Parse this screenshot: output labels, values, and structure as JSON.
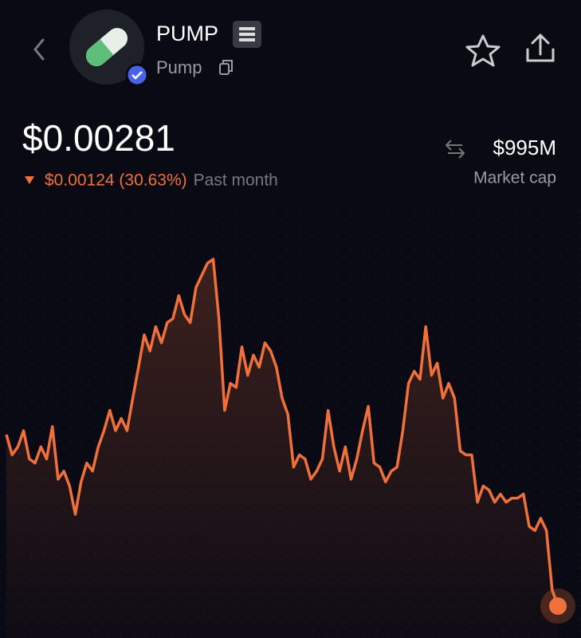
{
  "header": {
    "symbol": "PUMP",
    "name": "Pump"
  },
  "price": {
    "current": "$0.00281",
    "change": "$0.00124 (30.63%)",
    "period": "Past month"
  },
  "market_cap": {
    "value": "$995M",
    "label": "Market cap"
  },
  "chart": {
    "type": "line",
    "color": "#f0703c",
    "values": [
      0.00408,
      0.00393,
      0.00399,
      0.00411,
      0.0039,
      0.00387,
      0.00399,
      0.0039,
      0.00414,
      0.00375,
      0.00381,
      0.0037,
      0.00349,
      0.00373,
      0.00387,
      0.00381,
      0.00399,
      0.00411,
      0.00426,
      0.00411,
      0.0042,
      0.00411,
      0.00435,
      0.00458,
      0.00482,
      0.0047,
      0.00488,
      0.00476,
      0.00491,
      0.00494,
      0.00511,
      0.00497,
      0.00491,
      0.00517,
      0.00526,
      0.00535,
      0.00538,
      0.00494,
      0.00426,
      0.00446,
      0.00443,
      0.00473,
      0.00452,
      0.00467,
      0.00458,
      0.00476,
      0.0047,
      0.00458,
      0.00435,
      0.00423,
      0.00384,
      0.00393,
      0.0039,
      0.00375,
      0.00381,
      0.0039,
      0.00426,
      0.00399,
      0.00381,
      0.00399,
      0.00375,
      0.0039,
      0.00411,
      0.00429,
      0.00387,
      0.00384,
      0.00373,
      0.00381,
      0.00384,
      0.00411,
      0.00446,
      0.00455,
      0.00449,
      0.00488,
      0.00452,
      0.00461,
      0.00435,
      0.00446,
      0.00435,
      0.00396,
      0.00393,
      0.00393,
      0.00358,
      0.0037,
      0.00367,
      0.00358,
      0.00364,
      0.00358,
      0.00361,
      0.00361,
      0.00364,
      0.0034,
      0.00337,
      0.00346,
      0.00337,
      0.00293,
      0.00281
    ]
  }
}
